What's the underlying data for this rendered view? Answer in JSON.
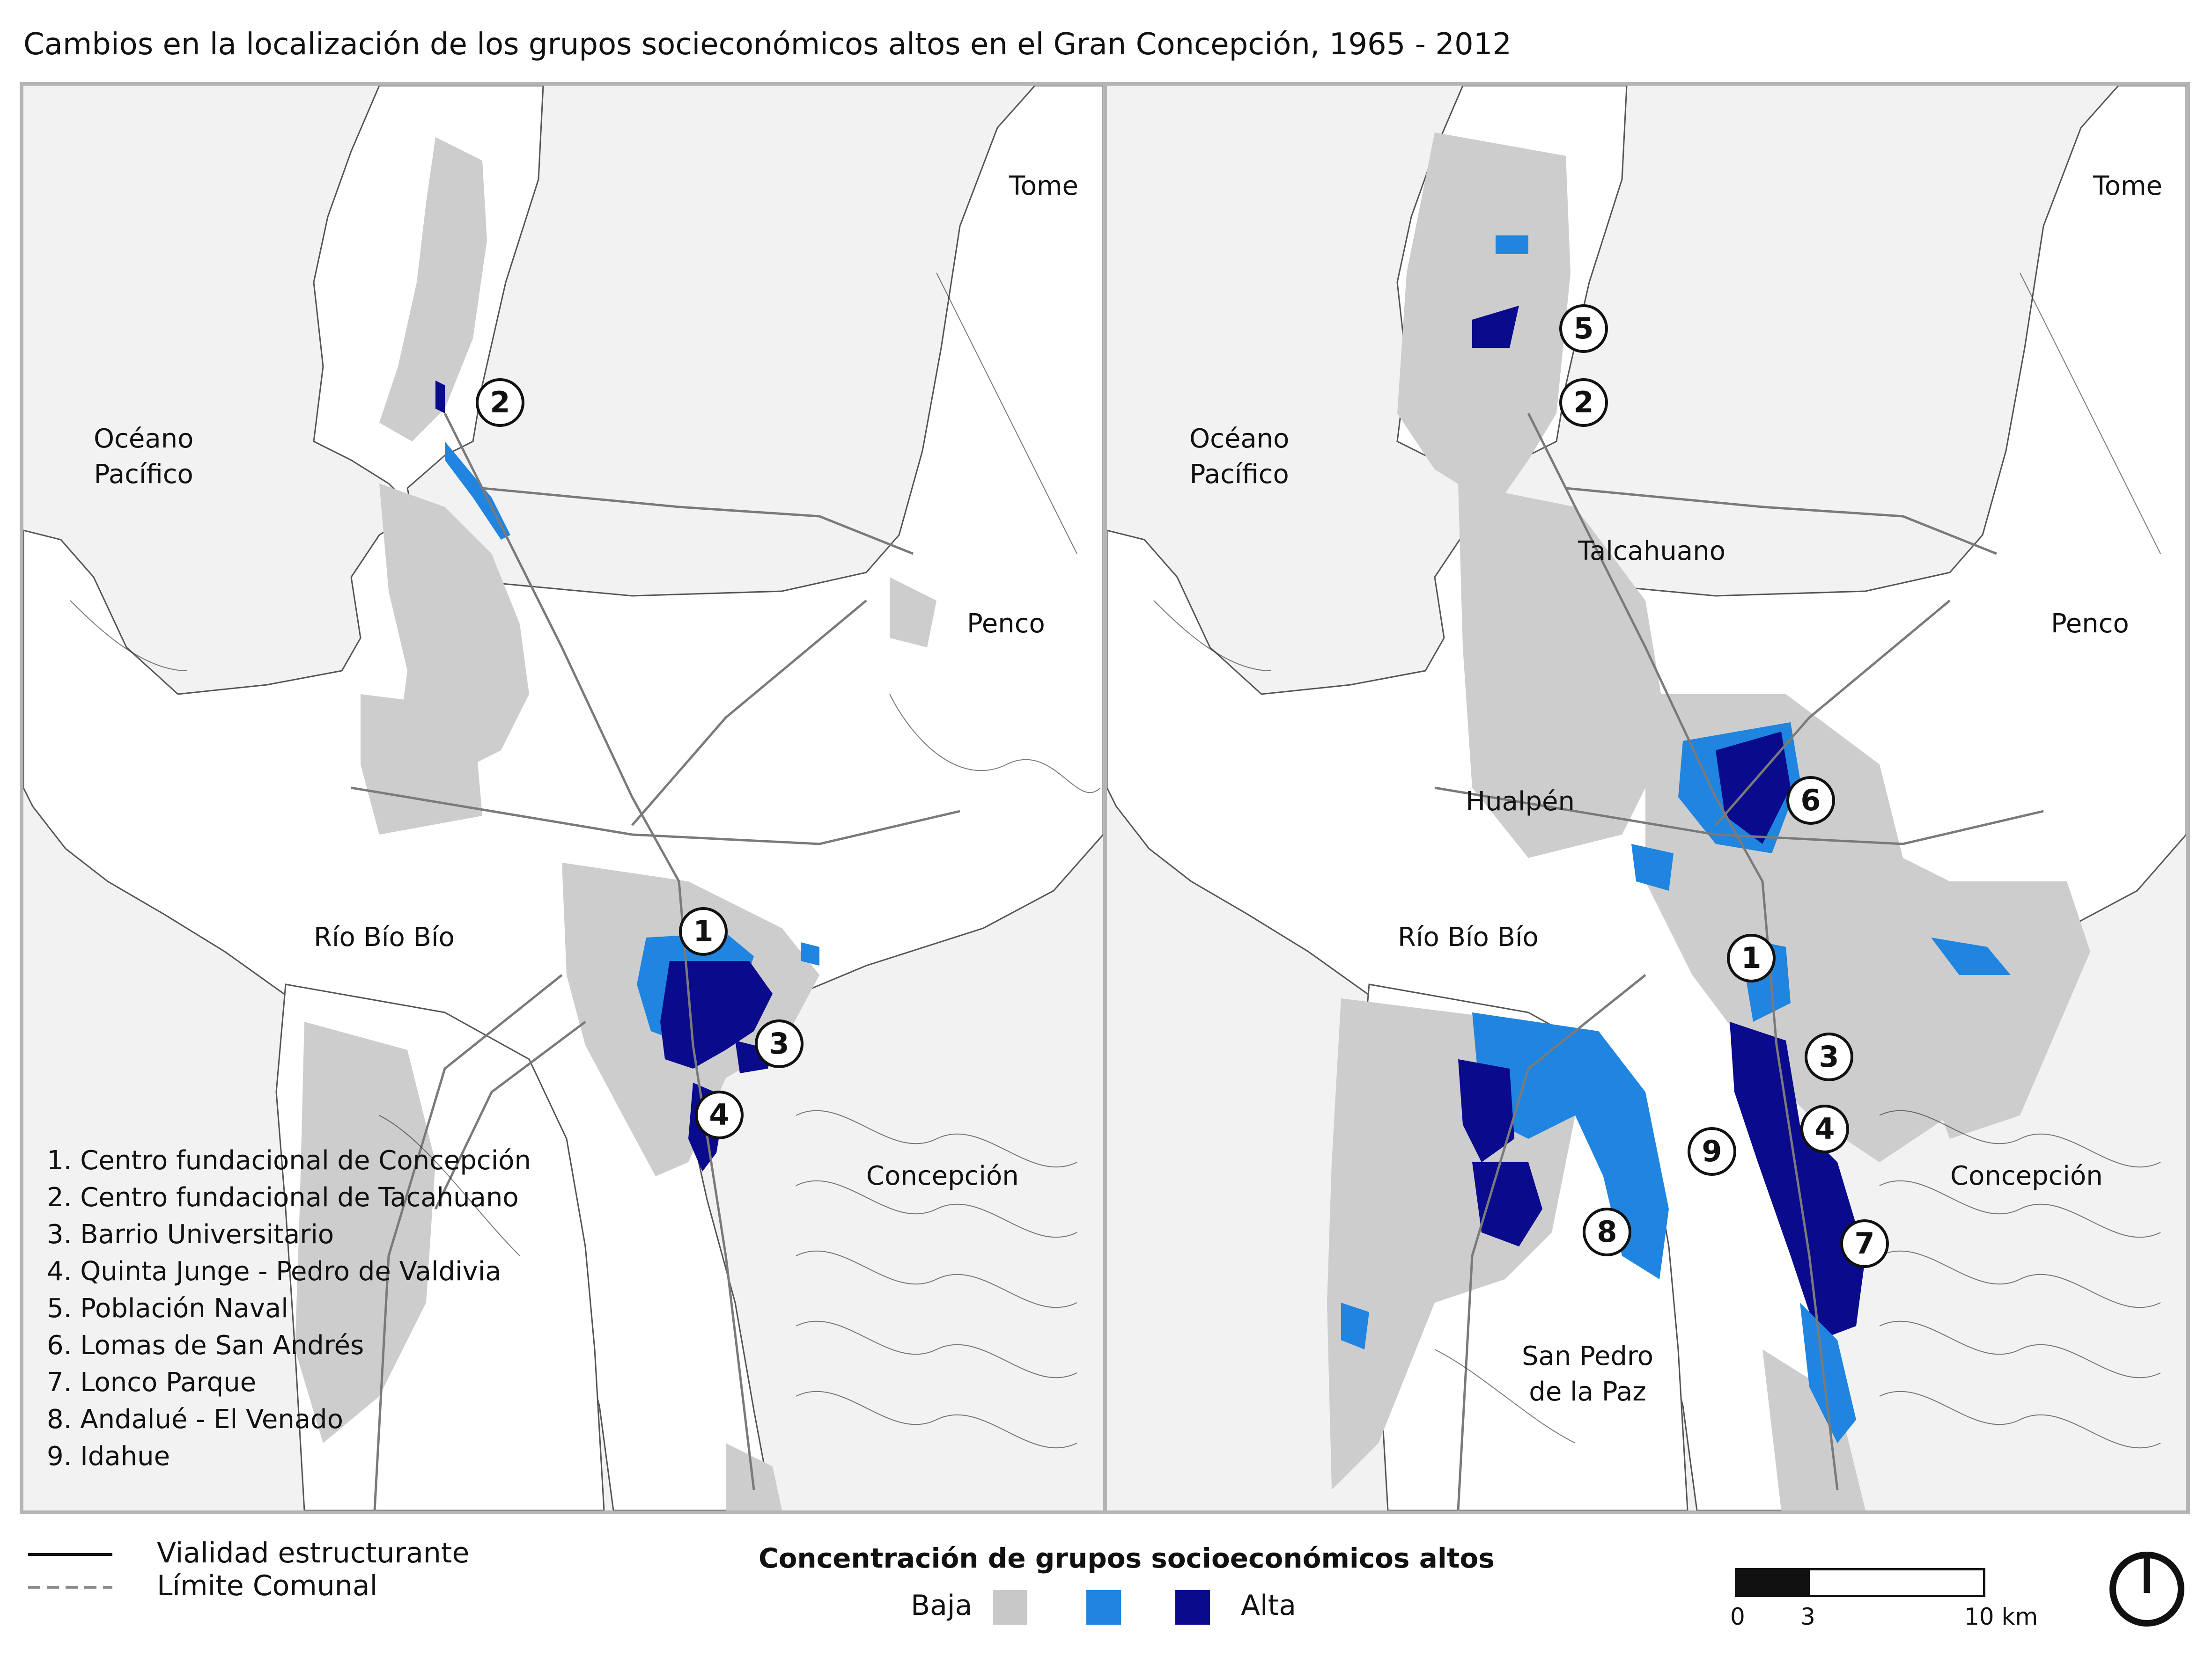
{
  "title": "Cambios en la localización de los grupos socieconómicos altos en el Gran Concepción, 1965 - 2012",
  "maps": {
    "left": {
      "places": {
        "tome": "Tome",
        "oceano": "Océano\nPacífico",
        "penco": "Penco",
        "rio": "Río Bío Bío",
        "concepcion": "Concepción"
      },
      "badges": [
        "2",
        "1",
        "3",
        "4"
      ]
    },
    "right": {
      "places": {
        "tome": "Tome",
        "oceano": "Océano\nPacífico",
        "talcahuano": "Talcahuano",
        "penco": "Penco",
        "hualpen": "Hualpén",
        "rio": "Río Bío Bío",
        "concepcion": "Concepción",
        "san_pedro": "San Pedro\nde la Paz"
      },
      "badges": [
        "5",
        "2",
        "6",
        "1",
        "3",
        "4",
        "9",
        "8",
        "7"
      ]
    }
  },
  "numbered_list": [
    "1. Centro fundacional de Concepción",
    "2. Centro fundacional de Tacahuano",
    "3. Barrio Universitario",
    "4. Quinta Junge - Pedro de Valdivia",
    "5. Población Naval",
    "6. Lomas de San Andrés",
    "7. Lonco Parque",
    "8. Andalué - El Venado",
    "9. Idahue"
  ],
  "legend": {
    "road": "Vialidad estructurante",
    "boundary": "Límite Comunal",
    "concentration_title": "Concentración de grupos socioeconómicos altos",
    "low": "Baja",
    "high": "Alta",
    "colors": {
      "low": "#c8c8c8",
      "mid": "#1f85e0",
      "high": "#0a0a8c"
    }
  },
  "scale": {
    "labels": [
      "0",
      "3",
      "10 km"
    ]
  },
  "north_icon": "north-arrow-icon"
}
